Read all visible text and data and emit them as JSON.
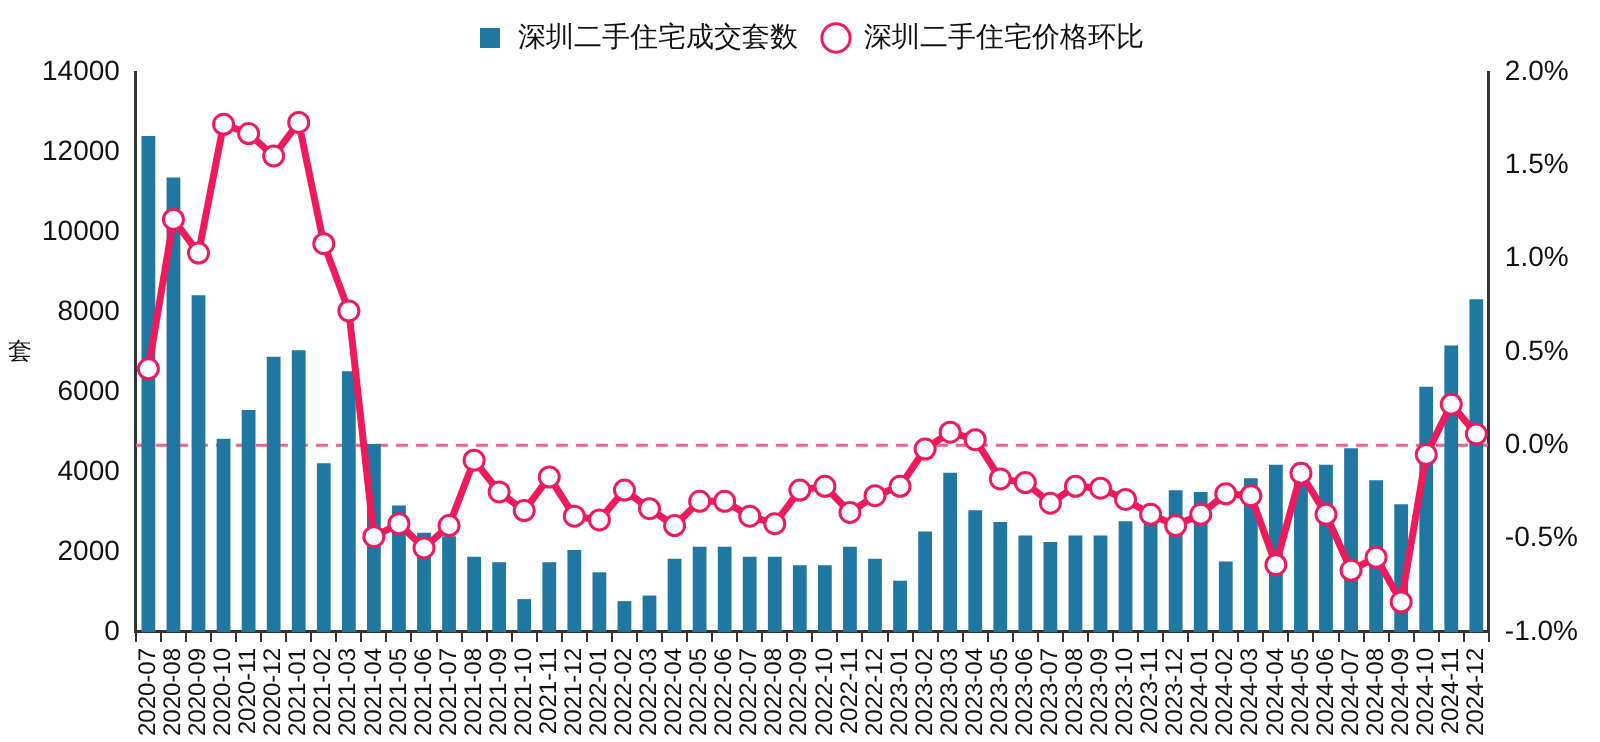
{
  "chart_data": {
    "type": "bar",
    "ylabel": "套",
    "categories": [
      "2020-07",
      "2020-08",
      "2020-09",
      "2020-10",
      "2020-11",
      "2020-12",
      "2021-01",
      "2021-02",
      "2021-03",
      "2021-04",
      "2021-05",
      "2021-06",
      "2021-07",
      "2021-08",
      "2021-09",
      "2021-10",
      "2021-11",
      "2021-12",
      "2022-01",
      "2022-02",
      "2022-03",
      "2022-04",
      "2022-05",
      "2022-06",
      "2022-07",
      "2022-08",
      "2022-09",
      "2022-10",
      "2022-11",
      "2022-12",
      "2023-01",
      "2023-02",
      "2023-03",
      "2023-04",
      "2023-05",
      "2023-06",
      "2023-07",
      "2023-08",
      "2023-09",
      "2023-10",
      "2023-11",
      "2023-12",
      "2024-01",
      "2024-02",
      "2024-03",
      "2024-04",
      "2024-05",
      "2024-06",
      "2024-07",
      "2024-08",
      "2024-09",
      "2024-10",
      "2024-11",
      "2024-12"
    ],
    "series": [
      {
        "name": "深圳二手住宅成交套数",
        "color": "#1f77a2",
        "values": [
          12400,
          11360,
          8420,
          4830,
          5550,
          6880,
          7040,
          4220,
          6520,
          4700,
          3160,
          2480,
          2390,
          1880,
          1740,
          820,
          1740,
          2050,
          1490,
          770,
          910,
          1830,
          2130,
          2130,
          1880,
          1880,
          1670,
          1670,
          2130,
          1830,
          1280,
          2510,
          3980,
          3040,
          2750,
          2410,
          2250,
          2410,
          2410,
          2770,
          2730,
          3540,
          3500,
          1760,
          3840,
          4180,
          4220,
          4180,
          4590,
          3790,
          3190,
          6130,
          7160,
          8320
        ]
      },
      {
        "name": "深圳二手住宅价格环比",
        "type": "line",
        "axis": "y2",
        "color": "#ee1a5c",
        "values": [
          0.41,
          1.21,
          1.03,
          1.72,
          1.67,
          1.55,
          1.73,
          1.08,
          0.72,
          -0.49,
          -0.42,
          -0.55,
          -0.43,
          -0.08,
          -0.25,
          -0.35,
          -0.17,
          -0.38,
          -0.4,
          -0.24,
          -0.34,
          -0.43,
          -0.3,
          -0.3,
          -0.38,
          -0.42,
          -0.24,
          -0.22,
          -0.36,
          -0.27,
          -0.22,
          -0.02,
          0.07,
          0.03,
          -0.18,
          -0.2,
          -0.31,
          -0.22,
          -0.23,
          -0.29,
          -0.37,
          -0.43,
          -0.37,
          -0.26,
          -0.27,
          -0.64,
          -0.15,
          -0.37,
          -0.67,
          -0.6,
          -0.84,
          -0.05,
          0.22,
          0.06
        ]
      }
    ],
    "ylim": [
      0,
      14000
    ],
    "yticks": [
      0,
      2000,
      4000,
      6000,
      8000,
      10000,
      12000,
      14000
    ],
    "y2lim": [
      -1.0,
      2.0
    ],
    "y2ticks": [
      {
        "value": -1.0,
        "label": "-1.0%"
      },
      {
        "value": -0.5,
        "label": "-0.5%"
      },
      {
        "value": 0,
        "label": "0.0%"
      },
      {
        "value": 0.5,
        "label": "0.5%"
      },
      {
        "value": 1.0,
        "label": "1.0%"
      },
      {
        "value": 1.5,
        "label": "1.5%"
      },
      {
        "value": 2.0,
        "label": "2.0%"
      }
    ],
    "ref_lines": [
      {
        "axis": "y2",
        "value": 0,
        "color": "#f0608a",
        "line_style": "dashed"
      }
    ],
    "grid": false,
    "legend": "top",
    "marker": "circle"
  }
}
